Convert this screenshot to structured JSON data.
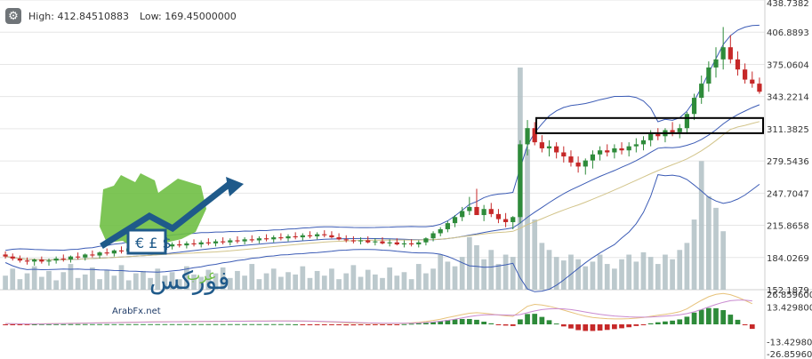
{
  "header": {
    "high_text": "High: 412.84510883",
    "low_text": "Low: 169.45000000",
    "settings_icon": "gear-icon"
  },
  "logo": {
    "text": "ArabFx.net"
  },
  "colors": {
    "up_candle": "#2e8b3a",
    "down_candle": "#c62828",
    "bollinger": "#3b5bb5",
    "sma": "#d2c48a",
    "volume": "#b0c0c4",
    "macd_line": "#e7c27a",
    "signal_line": "#c98ad0",
    "hist_up": "#2e8b3a",
    "hist_down": "#c62828",
    "highlight_box": "#000000"
  },
  "chart_data": [
    {
      "type": "candlestick",
      "title": "",
      "high": 412.84510883,
      "low": 169.45,
      "ylim": [
        152.1879,
        438.7382
      ],
      "y_ticks": [
        "438.7382",
        "406.8893",
        "375.0604",
        "343.2214",
        "311.3825",
        "279.5436",
        "247.7047",
        "215.8658",
        "184.0269",
        "152.1879"
      ],
      "y_tick_values": [
        438.7382,
        406.8893,
        375.0604,
        343.2214,
        311.3825,
        279.5436,
        247.7047,
        215.8658,
        184.0269,
        152.1879
      ],
      "grid": true,
      "highlight_range": [
        307.0,
        322.0
      ],
      "overlays": [
        "Bollinger upper",
        "Bollinger lower",
        "Bollinger middle",
        "SMA"
      ],
      "volume_bars": true,
      "ohlc": [
        [
          187,
          190,
          183,
          185
        ],
        [
          185,
          188,
          181,
          183
        ],
        [
          183,
          186,
          179,
          181
        ],
        [
          181,
          184,
          177,
          180
        ],
        [
          180,
          183,
          176,
          182
        ],
        [
          182,
          185,
          178,
          180
        ],
        [
          180,
          183,
          176,
          181
        ],
        [
          181,
          185,
          178,
          183
        ],
        [
          183,
          187,
          180,
          182
        ],
        [
          182,
          186,
          179,
          185
        ],
        [
          185,
          189,
          182,
          184
        ],
        [
          184,
          188,
          181,
          187
        ],
        [
          187,
          191,
          184,
          186
        ],
        [
          186,
          190,
          183,
          189
        ],
        [
          189,
          193,
          186,
          188
        ],
        [
          188,
          192,
          185,
          191
        ],
        [
          191,
          195,
          188,
          190
        ],
        [
          190,
          194,
          187,
          193
        ],
        [
          193,
          197,
          190,
          192
        ],
        [
          192,
          196,
          189,
          195
        ],
        [
          195,
          199,
          192,
          194
        ],
        [
          194,
          198,
          191,
          196
        ],
        [
          196,
          200,
          193,
          195
        ],
        [
          195,
          199,
          192,
          197
        ],
        [
          197,
          201,
          194,
          196
        ],
        [
          196,
          200,
          193,
          198
        ],
        [
          198,
          202,
          195,
          197
        ],
        [
          197,
          201,
          194,
          199
        ],
        [
          199,
          203,
          196,
          198
        ],
        [
          198,
          202,
          195,
          200
        ],
        [
          200,
          204,
          197,
          199
        ],
        [
          199,
          203,
          196,
          201
        ],
        [
          201,
          205,
          198,
          200
        ],
        [
          200,
          204,
          197,
          202
        ],
        [
          202,
          206,
          199,
          201
        ],
        [
          201,
          205,
          198,
          203
        ],
        [
          203,
          207,
          200,
          202
        ],
        [
          202,
          206,
          199,
          204
        ],
        [
          204,
          208,
          201,
          203
        ],
        [
          203,
          207,
          200,
          205
        ],
        [
          205,
          209,
          202,
          204
        ],
        [
          204,
          208,
          201,
          206
        ],
        [
          206,
          210,
          203,
          205
        ],
        [
          205,
          209,
          202,
          207
        ],
        [
          207,
          211,
          204,
          206
        ],
        [
          206,
          210,
          203,
          204
        ],
        [
          204,
          208,
          201,
          202
        ],
        [
          202,
          206,
          199,
          201
        ],
        [
          201,
          205,
          198,
          200
        ],
        [
          200,
          204,
          197,
          201
        ],
        [
          201,
          205,
          198,
          199
        ],
        [
          199,
          203,
          196,
          200
        ],
        [
          200,
          204,
          197,
          198
        ],
        [
          198,
          202,
          195,
          199
        ],
        [
          199,
          203,
          196,
          197
        ],
        [
          197,
          201,
          194,
          198
        ],
        [
          198,
          202,
          195,
          197
        ],
        [
          197,
          201,
          194,
          199
        ],
        [
          199,
          204,
          196,
          203
        ],
        [
          203,
          210,
          200,
          208
        ],
        [
          208,
          214,
          205,
          212
        ],
        [
          212,
          220,
          209,
          218
        ],
        [
          218,
          226,
          214,
          224
        ],
        [
          224,
          234,
          220,
          230
        ],
        [
          230,
          244,
          226,
          234
        ],
        [
          234,
          252,
          228,
          226
        ],
        [
          226,
          236,
          220,
          232
        ],
        [
          232,
          238,
          224,
          227
        ],
        [
          227,
          232,
          218,
          222
        ],
        [
          222,
          228,
          214,
          219
        ],
        [
          219,
          225,
          212,
          224
        ],
        [
          224,
          300,
          218,
          296
        ],
        [
          296,
          320,
          285,
          312
        ],
        [
          312,
          318,
          295,
          298
        ],
        [
          298,
          305,
          288,
          292
        ],
        [
          292,
          300,
          284,
          294
        ],
        [
          294,
          298,
          282,
          288
        ],
        [
          288,
          294,
          278,
          284
        ],
        [
          284,
          290,
          274,
          278
        ],
        [
          278,
          284,
          268,
          274
        ],
        [
          274,
          282,
          266,
          280
        ],
        [
          280,
          290,
          272,
          286
        ],
        [
          286,
          294,
          280,
          290
        ],
        [
          290,
          296,
          284,
          288
        ],
        [
          288,
          296,
          282,
          292
        ],
        [
          292,
          298,
          286,
          290
        ],
        [
          290,
          298,
          284,
          294
        ],
        [
          294,
          302,
          288,
          296
        ],
        [
          296,
          304,
          290,
          300
        ],
        [
          300,
          310,
          294,
          306
        ],
        [
          306,
          312,
          300,
          304
        ],
        [
          304,
          312,
          298,
          310
        ],
        [
          310,
          318,
          304,
          308
        ],
        [
          308,
          316,
          302,
          312
        ],
        [
          312,
          328,
          306,
          326
        ],
        [
          326,
          346,
          320,
          342
        ],
        [
          342,
          364,
          336,
          356
        ],
        [
          356,
          378,
          348,
          372
        ],
        [
          372,
          392,
          362,
          380
        ],
        [
          380,
          412,
          370,
          392
        ],
        [
          392,
          404,
          376,
          380
        ],
        [
          380,
          388,
          364,
          370
        ],
        [
          370,
          376,
          356,
          360
        ],
        [
          360,
          368,
          352,
          356
        ],
        [
          356,
          362,
          346,
          348
        ]
      ],
      "volume": [
        12,
        18,
        9,
        14,
        20,
        11,
        16,
        8,
        15,
        22,
        10,
        13,
        19,
        9,
        17,
        12,
        21,
        8,
        14,
        16,
        10,
        18,
        12,
        15,
        9,
        20,
        13,
        11,
        17,
        14,
        19,
        10,
        16,
        12,
        22,
        9,
        14,
        18,
        11,
        15,
        13,
        20,
        10,
        16,
        12,
        18,
        9,
        14,
        21,
        11,
        17,
        13,
        10,
        19,
        12,
        15,
        9,
        22,
        14,
        18,
        30,
        24,
        20,
        28,
        45,
        38,
        26,
        34,
        22,
        30,
        28,
        190,
        120,
        60,
        40,
        34,
        28,
        25,
        30,
        26,
        20,
        24,
        30,
        22,
        18,
        26,
        30,
        24,
        32,
        28,
        22,
        30,
        26,
        34,
        40,
        60,
        110,
        80,
        70,
        50
      ],
      "series": [
        {
          "name": "",
          "kind": "macd",
          "values": [
            0.5,
            0.4,
            0.3,
            0.2,
            0.3,
            0.4,
            0.5,
            0.6,
            0.7,
            0.8,
            0.9,
            1.0,
            1.1,
            1.2,
            1.3,
            1.4,
            1.5,
            1.6,
            1.7,
            1.8,
            1.9,
            2.0,
            2.0,
            2.1,
            2.1,
            2.2,
            2.2,
            2.3,
            2.3,
            2.4,
            2.4,
            2.5,
            2.5,
            2.5,
            2.6,
            2.6,
            2.6,
            2.7,
            2.7,
            2.7,
            2.6,
            2.5,
            2.4,
            2.2,
            2.0,
            1.8,
            1.5,
            1.2,
            1.0,
            0.9,
            0.8,
            0.7,
            0.6,
            0.6,
            0.7,
            0.9,
            1.2,
            1.6,
            2.2,
            3.0,
            4.0,
            5.2,
            6.4,
            7.6,
            8.6,
            9.0,
            8.6,
            8.0,
            7.2,
            6.6,
            6.2,
            10.0,
            14.0,
            15.5,
            15.0,
            14.0,
            12.6,
            11.0,
            9.4,
            7.8,
            6.4,
            5.4,
            4.8,
            4.4,
            4.2,
            4.2,
            4.4,
            4.8,
            5.4,
            6.2,
            7.0,
            7.8,
            8.6,
            9.8,
            12.0,
            15.4,
            18.6,
            21.4,
            23.2,
            24.0,
            23.0,
            21.0,
            18.6,
            16.0
          ]
        },
        {
          "name": "",
          "kind": "signal",
          "values": [
            0.6,
            0.5,
            0.4,
            0.3,
            0.3,
            0.3,
            0.4,
            0.5,
            0.6,
            0.7,
            0.8,
            0.9,
            1.0,
            1.1,
            1.2,
            1.3,
            1.4,
            1.5,
            1.6,
            1.7,
            1.8,
            1.9,
            1.9,
            2.0,
            2.0,
            2.1,
            2.1,
            2.2,
            2.2,
            2.3,
            2.3,
            2.4,
            2.4,
            2.4,
            2.5,
            2.5,
            2.5,
            2.6,
            2.6,
            2.6,
            2.6,
            2.6,
            2.5,
            2.4,
            2.3,
            2.1,
            1.9,
            1.7,
            1.5,
            1.3,
            1.1,
            1.0,
            0.9,
            0.8,
            0.8,
            0.8,
            0.9,
            1.1,
            1.4,
            1.8,
            2.4,
            3.1,
            4.0,
            5.0,
            6.0,
            6.8,
            7.3,
            7.5,
            7.4,
            7.2,
            7.0,
            7.6,
            9.0,
            10.4,
            11.4,
            12.0,
            12.2,
            12.0,
            11.4,
            10.6,
            9.6,
            8.6,
            7.8,
            7.1,
            6.5,
            6.1,
            5.8,
            5.6,
            5.6,
            5.7,
            6.0,
            6.4,
            6.8,
            7.4,
            8.3,
            9.7,
            11.5,
            13.5,
            15.4,
            17.1,
            18.3,
            18.8,
            18.7,
            18.2
          ]
        }
      ],
      "macd_ylim": [
        -26.8596,
        26.8596
      ],
      "macd_ticks": [
        "26.8596000",
        "13.4298000",
        "-13.4298000",
        "-26.8596000"
      ],
      "macd_tick_values": [
        26.8596,
        13.4298,
        -13.4298,
        -26.8596
      ]
    }
  ]
}
